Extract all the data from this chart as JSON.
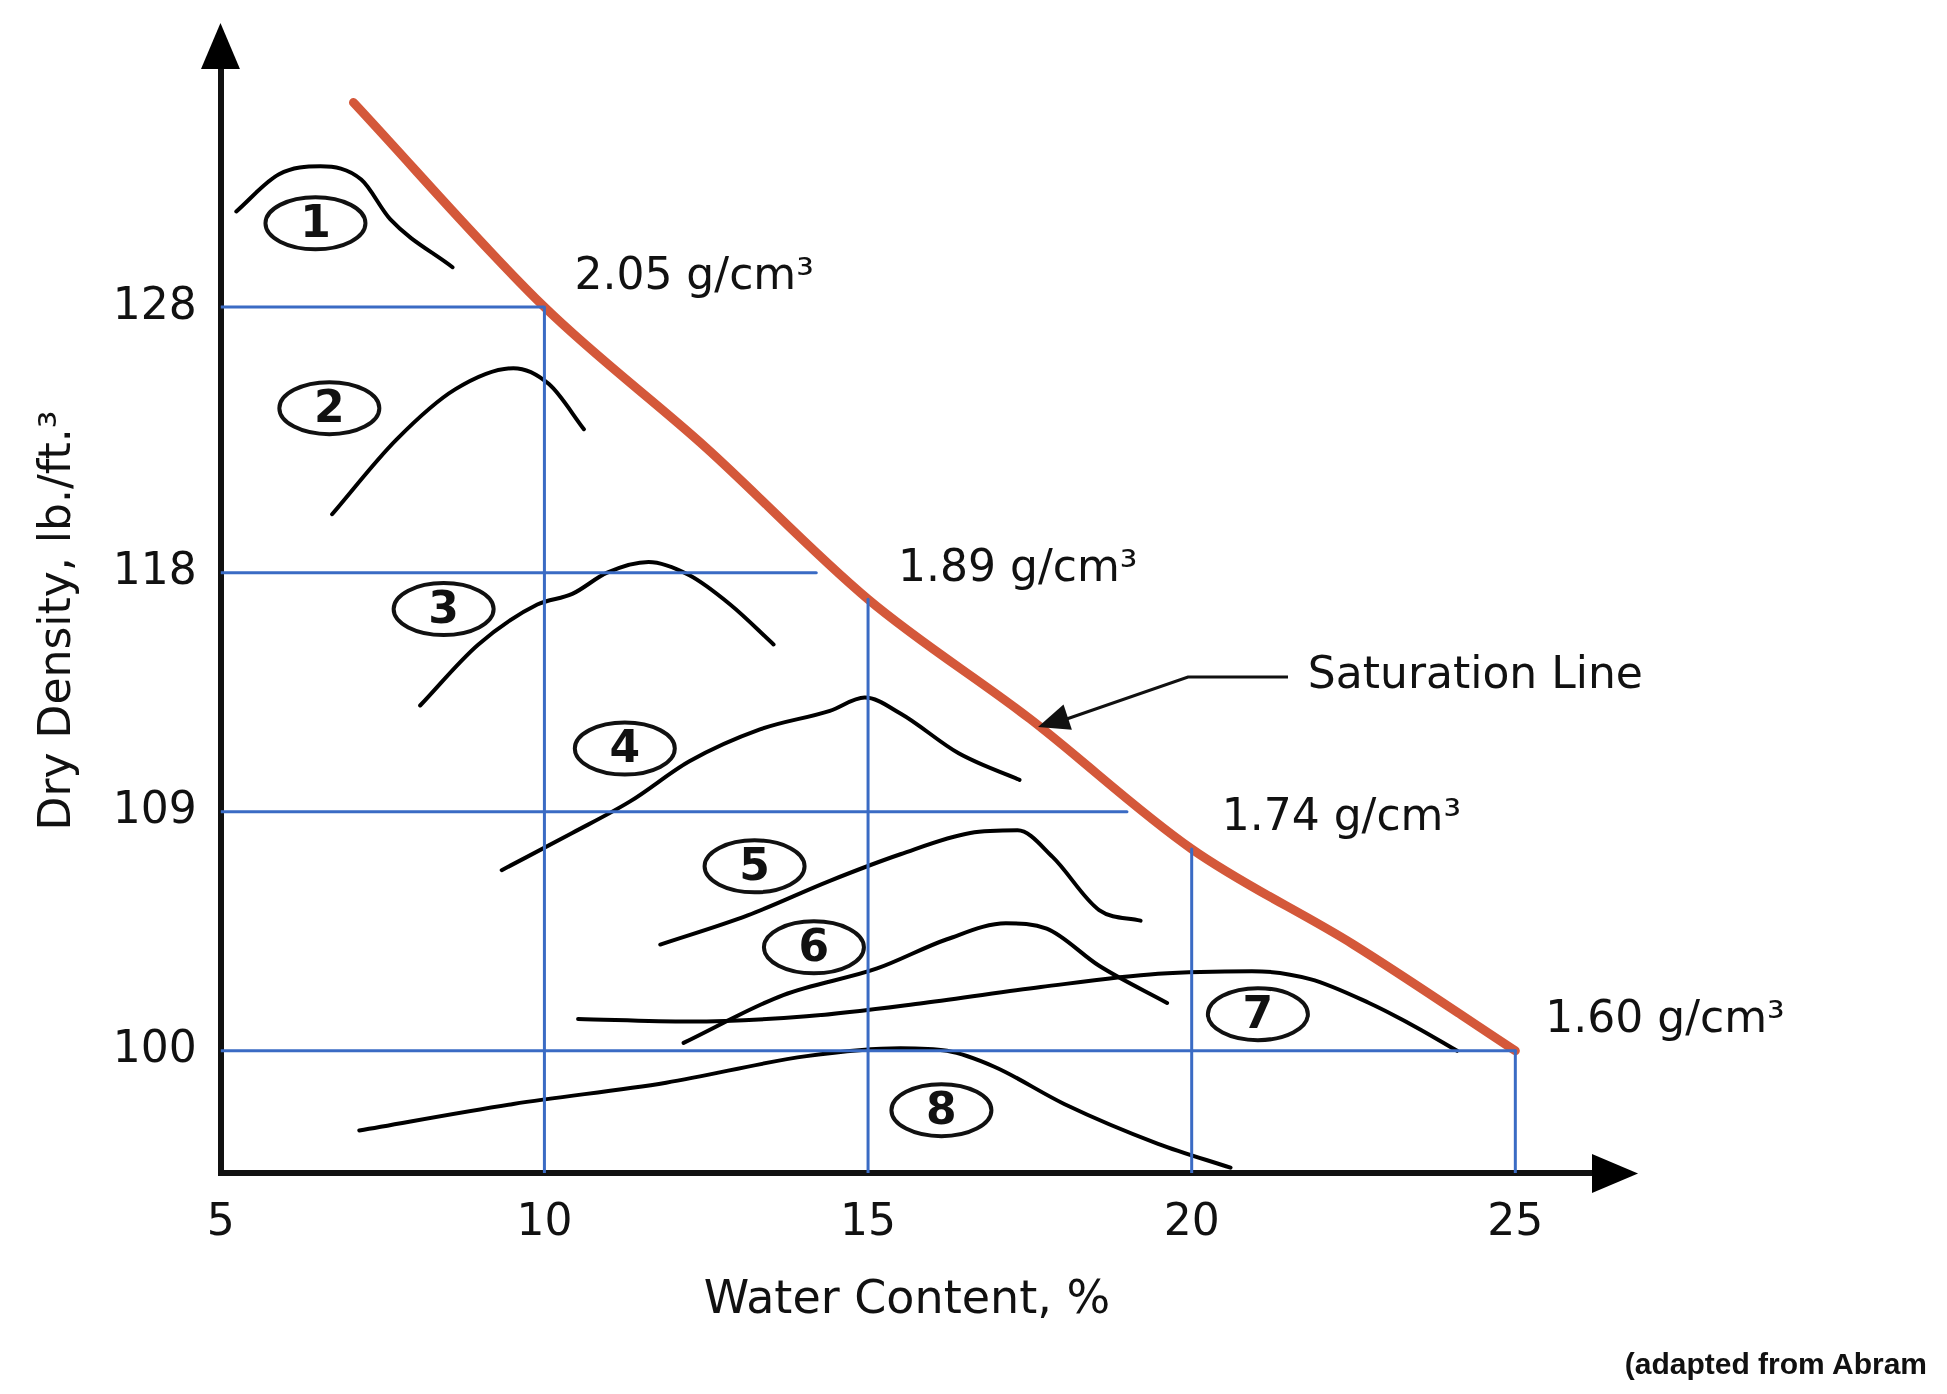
{
  "chart_data": {
    "type": "line",
    "xlabel": "Water Content, %",
    "ylabel": "Dry Density, lb./ft.³",
    "xlim": [
      5,
      26.2
    ],
    "xticks": [
      5,
      10,
      15,
      20,
      25
    ],
    "ylim": [
      95.4,
      137
    ],
    "yticks": [
      100,
      109,
      118,
      128
    ],
    "grid": false,
    "legend": false,
    "marker": "none",
    "series": [
      {
        "color": "#3a6bc4",
        "x": [
          5,
          10,
          10
        ],
        "values": [
          128,
          128,
          95.4
        ]
      },
      {
        "color": "#3a6bc4",
        "x": [
          5,
          14.2
        ],
        "values": [
          118,
          118
        ]
      },
      {
        "color": "#3a6bc4",
        "x": [
          15,
          15
        ],
        "values": [
          117,
          95.4
        ]
      },
      {
        "color": "#3a6bc4",
        "x": [
          5,
          19
        ],
        "values": [
          109,
          109
        ]
      },
      {
        "color": "#3a6bc4",
        "x": [
          20,
          20
        ],
        "values": [
          107.6,
          95.4
        ]
      },
      {
        "color": "#3a6bc4",
        "x": [
          5,
          25
        ],
        "values": [
          100,
          100
        ]
      },
      {
        "color": "#3a6bc4",
        "x": [
          25,
          25
        ],
        "values": [
          100,
          95.4
        ]
      },
      {
        "name": "1",
        "color": "#000000",
        "x": [
          5.24,
          5.9,
          6.54,
          7.17,
          7.62,
          8.58
        ],
        "values": [
          131.6,
          133.0,
          133.3,
          132.8,
          131.3,
          129.5
        ]
      },
      {
        "name": "2",
        "color": "#000000",
        "x": [
          6.72,
          7.71,
          8.62,
          9.52,
          10.07,
          10.61
        ],
        "values": [
          120.2,
          123.0,
          124.9,
          125.7,
          125.1,
          123.4
        ]
      },
      {
        "name": "3",
        "color": "#000000",
        "x": [
          8.08,
          8.98,
          9.89,
          10.43,
          10.97,
          11.61,
          12.24,
          12.87,
          13.54
        ],
        "values": [
          113.0,
          115.3,
          116.8,
          117.2,
          118.0,
          118.4,
          117.9,
          116.8,
          115.3
        ]
      },
      {
        "name": "4",
        "color": "#000000",
        "x": [
          9.34,
          10.43,
          11.33,
          12.24,
          13.33,
          14.41,
          14.95,
          15.5,
          16.4,
          17.34
        ],
        "values": [
          106.8,
          108.2,
          109.4,
          110.9,
          112.1,
          112.8,
          113.3,
          112.7,
          111.2,
          110.2
        ]
      },
      {
        "name": "5",
        "color": "#000000",
        "x": [
          11.79,
          13.14,
          14.41,
          15.5,
          16.58,
          17.31,
          17.85,
          18.57,
          19.21
        ],
        "values": [
          104.0,
          105.1,
          106.4,
          107.4,
          108.2,
          108.3,
          107.3,
          105.3,
          104.9
        ]
      },
      {
        "name": "6",
        "color": "#000000",
        "x": [
          12.15,
          13.69,
          15.14,
          16.22,
          17.13,
          17.76,
          18.57,
          19.62
        ],
        "values": [
          100.3,
          102.1,
          103.1,
          104.2,
          104.8,
          104.6,
          103.2,
          101.8
        ]
      },
      {
        "name": "7",
        "color": "#000000",
        "x": [
          10.52,
          12.24,
          14.05,
          15.86,
          17.67,
          19.48,
          20.93,
          21.83,
          22.74,
          23.46,
          24.1
        ],
        "values": [
          101.2,
          101.1,
          101.3,
          101.8,
          102.4,
          102.9,
          103.0,
          102.7,
          101.8,
          100.9,
          100.0
        ]
      },
      {
        "name": "8",
        "color": "#000000",
        "x": [
          7.14,
          9.52,
          11.88,
          14.05,
          15.5,
          16.22,
          16.95,
          18.03,
          19.48,
          20.6
        ],
        "values": [
          97.0,
          98.0,
          98.8,
          99.8,
          100.1,
          100.0,
          99.4,
          98.0,
          96.5,
          95.6
        ]
      },
      {
        "color": "#d4583a",
        "x": [
          7.05,
          10,
          12.5,
          15,
          17.5,
          20,
          22.5,
          25
        ],
        "values": [
          135.7,
          128,
          122.7,
          117,
          112.5,
          107.6,
          104.0,
          100
        ]
      }
    ],
    "annotations": [
      {
        "text": "2.05 g/cm³",
        "x": 10,
        "y": 128
      },
      {
        "text": "1.89 g/cm³",
        "x": 15,
        "y": 117
      },
      {
        "text": "1.74 g/cm³",
        "x": 20,
        "y": 107.6
      },
      {
        "text": "1.60 g/cm³",
        "x": 25,
        "y": 100
      },
      "Saturation Line",
      "(adapted from Abram"
    ]
  }
}
